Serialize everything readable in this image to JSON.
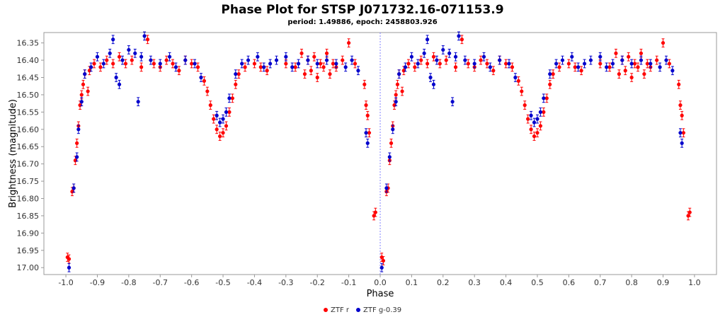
{
  "chart_data": {
    "type": "scatter",
    "title": "Phase Plot for STSP J071732.16-071153.9",
    "subtitle": "period: 1.49886, epoch: 2458803.926",
    "xlabel": "Phase",
    "ylabel": "Brightness (magnitude)",
    "xlim": [
      -1.07,
      1.07
    ],
    "ylim": [
      16.32,
      17.02
    ],
    "y_inverted": true,
    "x_ticks": [
      -1.0,
      -0.9,
      -0.8,
      -0.7,
      -0.6,
      -0.5,
      -0.4,
      -0.3,
      -0.2,
      -0.1,
      0.0,
      0.1,
      0.2,
      0.3,
      0.4,
      0.5,
      0.6,
      0.7,
      0.8,
      0.9,
      1.0
    ],
    "x_tick_labels": [
      "-1.0",
      "-0.9",
      "-0.8",
      "-0.7",
      "-0.6",
      "-0.5",
      "-0.4",
      "-0.3",
      "-0.2",
      "-0.1",
      "0.0",
      "0.1",
      "0.2",
      "0.3",
      "0.4",
      "0.5",
      "0.6",
      "0.7",
      "0.8",
      "0.9",
      "1.0"
    ],
    "y_ticks": [
      16.35,
      16.4,
      16.45,
      16.5,
      16.55,
      16.6,
      16.65,
      16.7,
      16.75,
      16.8,
      16.85,
      16.9,
      16.95,
      17.0
    ],
    "y_tick_labels": [
      "16.35",
      "16.40",
      "16.45",
      "16.50",
      "16.55",
      "16.60",
      "16.65",
      "16.70",
      "16.75",
      "16.80",
      "16.85",
      "16.90",
      "16.95",
      "17.00"
    ],
    "grid": false,
    "reference_line_x": 0.0,
    "legend_position": "bottom",
    "series": [
      {
        "name": "ZTF r",
        "color": "#ff0000",
        "points": [
          [
            -0.995,
            16.97
          ],
          [
            -0.99,
            16.975
          ],
          [
            -0.98,
            16.78
          ],
          [
            -0.975,
            16.77
          ],
          [
            -0.97,
            16.69
          ],
          [
            -0.965,
            16.64
          ],
          [
            -0.96,
            16.59
          ],
          [
            -0.955,
            16.53
          ],
          [
            -0.95,
            16.5
          ],
          [
            -0.945,
            16.47
          ],
          [
            -0.94,
            16.44
          ],
          [
            -0.93,
            16.49
          ],
          [
            -0.925,
            16.43
          ],
          [
            -0.91,
            16.41
          ],
          [
            -0.89,
            16.42
          ],
          [
            -0.87,
            16.4
          ],
          [
            -0.85,
            16.41
          ],
          [
            -0.83,
            16.39
          ],
          [
            -0.81,
            16.41
          ],
          [
            -0.79,
            16.4
          ],
          [
            -0.76,
            16.42
          ],
          [
            -0.74,
            16.34
          ],
          [
            -0.72,
            16.41
          ],
          [
            -0.7,
            16.42
          ],
          [
            -0.68,
            16.4
          ],
          [
            -0.66,
            16.41
          ],
          [
            -0.64,
            16.43
          ],
          [
            -0.62,
            16.4
          ],
          [
            -0.6,
            16.41
          ],
          [
            -0.58,
            16.42
          ],
          [
            -0.56,
            16.46
          ],
          [
            -0.55,
            16.49
          ],
          [
            -0.54,
            16.53
          ],
          [
            -0.53,
            16.57
          ],
          [
            -0.52,
            16.6
          ],
          [
            -0.51,
            16.62
          ],
          [
            -0.5,
            16.61
          ],
          [
            -0.49,
            16.59
          ],
          [
            -0.48,
            16.55
          ],
          [
            -0.47,
            16.51
          ],
          [
            -0.46,
            16.47
          ],
          [
            -0.45,
            16.44
          ],
          [
            -0.43,
            16.42
          ],
          [
            -0.4,
            16.41
          ],
          [
            -0.38,
            16.42
          ],
          [
            -0.36,
            16.43
          ],
          [
            -0.3,
            16.41
          ],
          [
            -0.27,
            16.42
          ],
          [
            -0.25,
            16.38
          ],
          [
            -0.24,
            16.44
          ],
          [
            -0.23,
            16.4
          ],
          [
            -0.22,
            16.43
          ],
          [
            -0.21,
            16.39
          ],
          [
            -0.2,
            16.45
          ],
          [
            -0.19,
            16.41
          ],
          [
            -0.18,
            16.42
          ],
          [
            -0.17,
            16.38
          ],
          [
            -0.16,
            16.44
          ],
          [
            -0.15,
            16.41
          ],
          [
            -0.14,
            16.42
          ],
          [
            -0.12,
            16.4
          ],
          [
            -0.1,
            16.35
          ],
          [
            -0.08,
            16.41
          ],
          [
            -0.05,
            16.47
          ],
          [
            -0.045,
            16.53
          ],
          [
            -0.04,
            16.56
          ],
          [
            -0.035,
            16.61
          ],
          [
            -0.02,
            16.85
          ],
          [
            -0.015,
            16.84
          ],
          [
            0.005,
            16.97
          ],
          [
            0.01,
            16.98
          ],
          [
            0.02,
            16.78
          ],
          [
            0.025,
            16.77
          ],
          [
            0.03,
            16.69
          ],
          [
            0.035,
            16.64
          ],
          [
            0.04,
            16.59
          ],
          [
            0.045,
            16.53
          ],
          [
            0.05,
            16.5
          ],
          [
            0.055,
            16.47
          ],
          [
            0.06,
            16.44
          ],
          [
            0.07,
            16.49
          ],
          [
            0.075,
            16.43
          ],
          [
            0.09,
            16.41
          ],
          [
            0.11,
            16.42
          ],
          [
            0.13,
            16.4
          ],
          [
            0.15,
            16.41
          ],
          [
            0.17,
            16.39
          ],
          [
            0.19,
            16.41
          ],
          [
            0.21,
            16.4
          ],
          [
            0.24,
            16.42
          ],
          [
            0.26,
            16.34
          ],
          [
            0.28,
            16.41
          ],
          [
            0.3,
            16.42
          ],
          [
            0.32,
            16.4
          ],
          [
            0.34,
            16.41
          ],
          [
            0.36,
            16.43
          ],
          [
            0.38,
            16.4
          ],
          [
            0.4,
            16.41
          ],
          [
            0.42,
            16.42
          ],
          [
            0.44,
            16.46
          ],
          [
            0.45,
            16.49
          ],
          [
            0.46,
            16.53
          ],
          [
            0.47,
            16.57
          ],
          [
            0.48,
            16.6
          ],
          [
            0.49,
            16.62
          ],
          [
            0.5,
            16.61
          ],
          [
            0.51,
            16.59
          ],
          [
            0.52,
            16.55
          ],
          [
            0.53,
            16.51
          ],
          [
            0.54,
            16.47
          ],
          [
            0.55,
            16.44
          ],
          [
            0.57,
            16.42
          ],
          [
            0.6,
            16.41
          ],
          [
            0.62,
            16.42
          ],
          [
            0.64,
            16.43
          ],
          [
            0.7,
            16.41
          ],
          [
            0.73,
            16.42
          ],
          [
            0.75,
            16.38
          ],
          [
            0.76,
            16.44
          ],
          [
            0.77,
            16.4
          ],
          [
            0.78,
            16.43
          ],
          [
            0.79,
            16.39
          ],
          [
            0.8,
            16.45
          ],
          [
            0.81,
            16.41
          ],
          [
            0.82,
            16.42
          ],
          [
            0.83,
            16.38
          ],
          [
            0.84,
            16.44
          ],
          [
            0.85,
            16.41
          ],
          [
            0.86,
            16.42
          ],
          [
            0.88,
            16.4
          ],
          [
            0.9,
            16.35
          ],
          [
            0.92,
            16.41
          ],
          [
            0.95,
            16.47
          ],
          [
            0.955,
            16.53
          ],
          [
            0.96,
            16.56
          ],
          [
            0.965,
            16.61
          ],
          [
            0.98,
            16.85
          ],
          [
            0.985,
            16.84
          ]
        ]
      },
      {
        "name": "ZTF g-0.39",
        "color": "#0000cc",
        "points": [
          [
            -0.99,
            17.0
          ],
          [
            -0.975,
            16.77
          ],
          [
            -0.965,
            16.68
          ],
          [
            -0.96,
            16.6
          ],
          [
            -0.95,
            16.52
          ],
          [
            -0.94,
            16.44
          ],
          [
            -0.92,
            16.42
          ],
          [
            -0.9,
            16.39
          ],
          [
            -0.88,
            16.41
          ],
          [
            -0.86,
            16.38
          ],
          [
            -0.85,
            16.34
          ],
          [
            -0.84,
            16.45
          ],
          [
            -0.83,
            16.47
          ],
          [
            -0.82,
            16.4
          ],
          [
            -0.8,
            16.37
          ],
          [
            -0.78,
            16.38
          ],
          [
            -0.77,
            16.52
          ],
          [
            -0.76,
            16.39
          ],
          [
            -0.75,
            16.33
          ],
          [
            -0.73,
            16.4
          ],
          [
            -0.7,
            16.41
          ],
          [
            -0.67,
            16.39
          ],
          [
            -0.65,
            16.42
          ],
          [
            -0.62,
            16.4
          ],
          [
            -0.59,
            16.41
          ],
          [
            -0.57,
            16.45
          ],
          [
            -0.52,
            16.56
          ],
          [
            -0.51,
            16.58
          ],
          [
            -0.5,
            16.57
          ],
          [
            -0.49,
            16.55
          ],
          [
            -0.48,
            16.51
          ],
          [
            -0.46,
            16.44
          ],
          [
            -0.44,
            16.41
          ],
          [
            -0.42,
            16.4
          ],
          [
            -0.39,
            16.39
          ],
          [
            -0.37,
            16.42
          ],
          [
            -0.35,
            16.41
          ],
          [
            -0.33,
            16.4
          ],
          [
            -0.3,
            16.39
          ],
          [
            -0.28,
            16.42
          ],
          [
            -0.26,
            16.41
          ],
          [
            -0.23,
            16.4
          ],
          [
            -0.2,
            16.41
          ],
          [
            -0.17,
            16.4
          ],
          [
            -0.14,
            16.41
          ],
          [
            -0.11,
            16.42
          ],
          [
            -0.09,
            16.4
          ],
          [
            -0.07,
            16.43
          ],
          [
            -0.045,
            16.61
          ],
          [
            -0.04,
            16.64
          ],
          [
            0.005,
            17.0
          ],
          [
            0.02,
            16.77
          ],
          [
            0.03,
            16.68
          ],
          [
            0.04,
            16.6
          ],
          [
            0.05,
            16.52
          ],
          [
            0.06,
            16.44
          ],
          [
            0.08,
            16.42
          ],
          [
            0.1,
            16.39
          ],
          [
            0.12,
            16.41
          ],
          [
            0.14,
            16.38
          ],
          [
            0.15,
            16.34
          ],
          [
            0.16,
            16.45
          ],
          [
            0.17,
            16.47
          ],
          [
            0.18,
            16.4
          ],
          [
            0.2,
            16.37
          ],
          [
            0.22,
            16.38
          ],
          [
            0.23,
            16.52
          ],
          [
            0.24,
            16.39
          ],
          [
            0.25,
            16.33
          ],
          [
            0.27,
            16.4
          ],
          [
            0.3,
            16.41
          ],
          [
            0.33,
            16.39
          ],
          [
            0.35,
            16.42
          ],
          [
            0.38,
            16.4
          ],
          [
            0.41,
            16.41
          ],
          [
            0.43,
            16.45
          ],
          [
            0.48,
            16.56
          ],
          [
            0.49,
            16.58
          ],
          [
            0.5,
            16.57
          ],
          [
            0.51,
            16.55
          ],
          [
            0.52,
            16.51
          ],
          [
            0.54,
            16.44
          ],
          [
            0.56,
            16.41
          ],
          [
            0.58,
            16.4
          ],
          [
            0.61,
            16.39
          ],
          [
            0.63,
            16.42
          ],
          [
            0.65,
            16.41
          ],
          [
            0.67,
            16.4
          ],
          [
            0.7,
            16.39
          ],
          [
            0.72,
            16.42
          ],
          [
            0.74,
            16.41
          ],
          [
            0.77,
            16.4
          ],
          [
            0.8,
            16.41
          ],
          [
            0.83,
            16.4
          ],
          [
            0.86,
            16.41
          ],
          [
            0.89,
            16.42
          ],
          [
            0.91,
            16.4
          ],
          [
            0.93,
            16.43
          ],
          [
            0.955,
            16.61
          ],
          [
            0.96,
            16.64
          ]
        ]
      }
    ]
  }
}
